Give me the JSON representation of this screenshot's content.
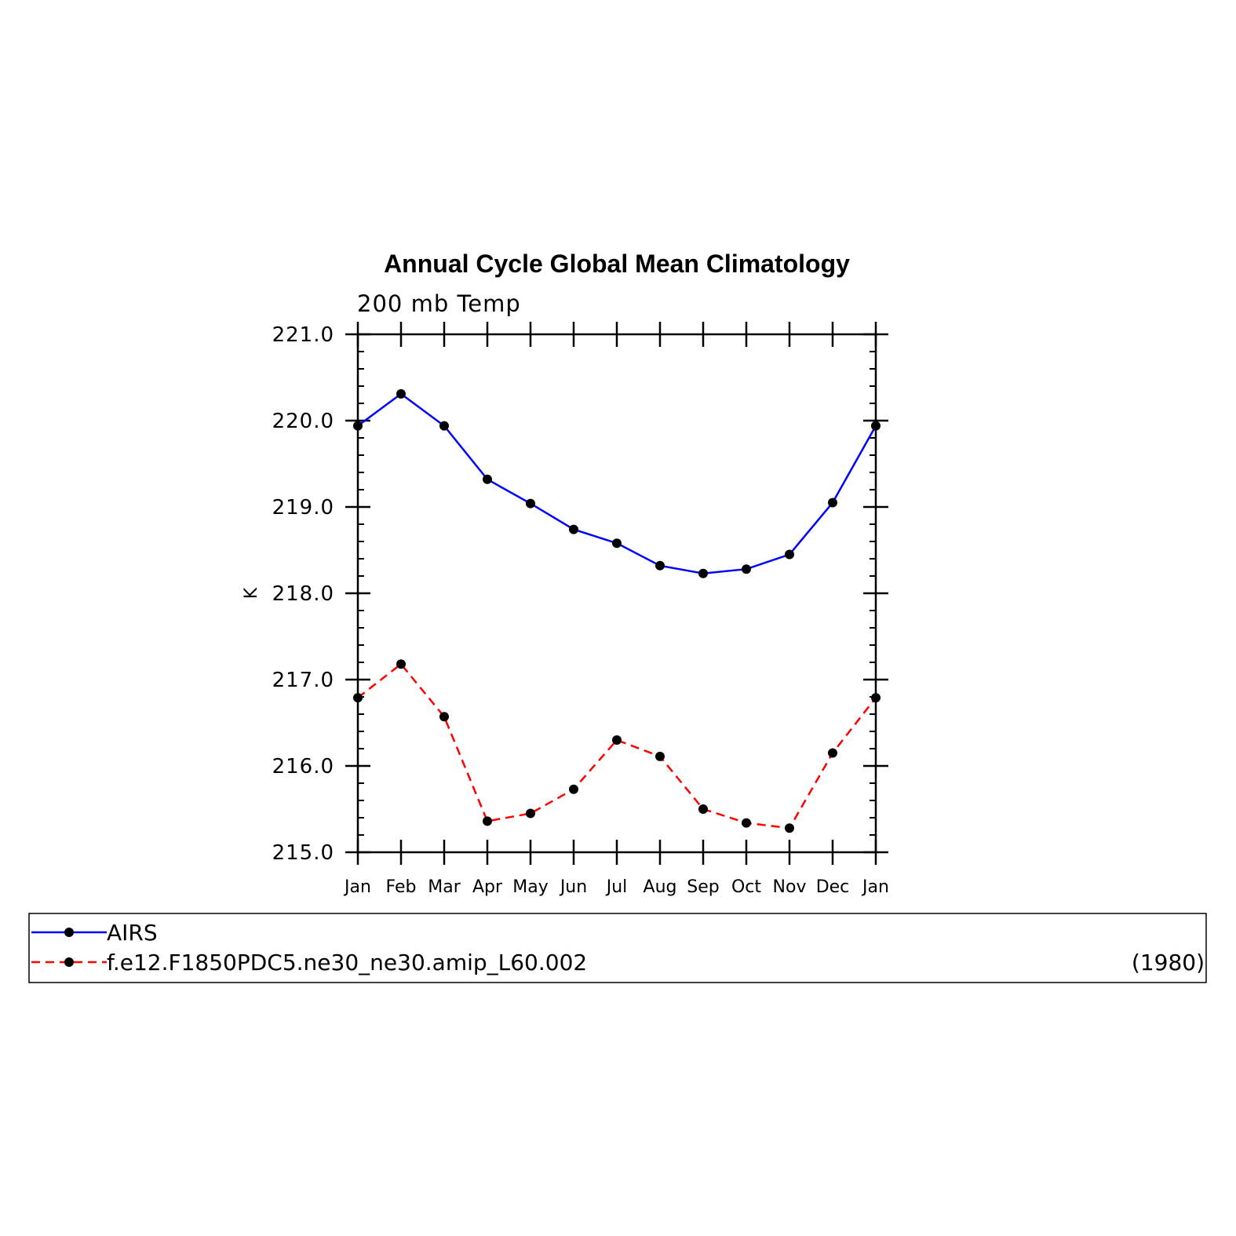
{
  "chart_data": {
    "type": "line",
    "title": "Annual Cycle Global Mean Climatology",
    "subtitle": "200 mb Temp",
    "ylabel": "K",
    "xlabel": "",
    "categories": [
      "Jan",
      "Feb",
      "Mar",
      "Apr",
      "May",
      "Jun",
      "Jul",
      "Aug",
      "Sep",
      "Oct",
      "Nov",
      "Dec",
      "Jan"
    ],
    "ylim": [
      215.0,
      221.0
    ],
    "yticks": [
      "221.0",
      "220.0",
      "219.0",
      "218.0",
      "217.0",
      "216.0",
      "215.0"
    ],
    "grid": false,
    "legend_position": "bottom",
    "series": [
      {
        "name": "AIRS",
        "color": "#0000ff",
        "line_style": "solid",
        "marker": "filled-circle",
        "values": [
          219.94,
          220.31,
          219.94,
          219.32,
          219.04,
          218.74,
          218.58,
          218.32,
          218.23,
          218.28,
          218.45,
          219.05,
          219.94
        ]
      },
      {
        "name": "f.e12.F1850PDC5.ne30_ne30.amip_L60.002",
        "color": "#ff0000",
        "line_style": "dashed",
        "marker": "filled-circle",
        "values": [
          216.79,
          217.18,
          216.57,
          215.36,
          215.45,
          215.73,
          216.3,
          216.11,
          215.5,
          215.34,
          215.28,
          216.15,
          216.79
        ]
      }
    ],
    "legend_note": "(1980)"
  }
}
